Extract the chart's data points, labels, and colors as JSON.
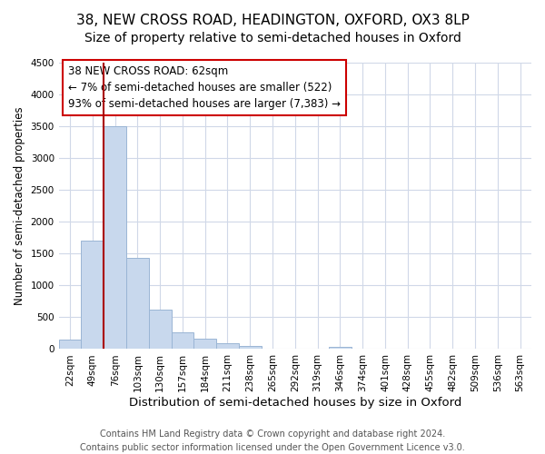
{
  "title1": "38, NEW CROSS ROAD, HEADINGTON, OXFORD, OX3 8LP",
  "title2": "Size of property relative to semi-detached houses in Oxford",
  "xlabel": "Distribution of semi-detached houses by size in Oxford",
  "ylabel": "Number of semi-detached properties",
  "bin_labels": [
    "22sqm",
    "49sqm",
    "76sqm",
    "103sqm",
    "130sqm",
    "157sqm",
    "184sqm",
    "211sqm",
    "238sqm",
    "265sqm",
    "292sqm",
    "319sqm",
    "346sqm",
    "374sqm",
    "401sqm",
    "428sqm",
    "455sqm",
    "482sqm",
    "509sqm",
    "536sqm",
    "563sqm"
  ],
  "bar_values": [
    150,
    1700,
    3500,
    1440,
    620,
    270,
    160,
    90,
    45,
    0,
    0,
    0,
    40,
    0,
    0,
    0,
    0,
    0,
    0,
    0,
    0
  ],
  "bar_color": "#c8d8ed",
  "bar_edge_color": "#9ab5d5",
  "marker_line_color": "#aa0000",
  "annotation_title": "38 NEW CROSS ROAD: 62sqm",
  "annotation_line1": "← 7% of semi-detached houses are smaller (522)",
  "annotation_line2": "93% of semi-detached houses are larger (7,383) →",
  "annotation_box_color": "#ffffff",
  "annotation_box_edge": "#cc0000",
  "ylim": [
    0,
    4500
  ],
  "yticks": [
    0,
    500,
    1000,
    1500,
    2000,
    2500,
    3000,
    3500,
    4000,
    4500
  ],
  "footer1": "Contains HM Land Registry data © Crown copyright and database right 2024.",
  "footer2": "Contains public sector information licensed under the Open Government Licence v3.0.",
  "background_color": "#ffffff",
  "plot_bg_color": "#ffffff",
  "grid_color": "#d0d8e8",
  "title1_fontsize": 11,
  "title2_fontsize": 10,
  "xlabel_fontsize": 9.5,
  "ylabel_fontsize": 8.5,
  "tick_fontsize": 7.5,
  "footer_fontsize": 7,
  "annotation_fontsize": 8.5
}
